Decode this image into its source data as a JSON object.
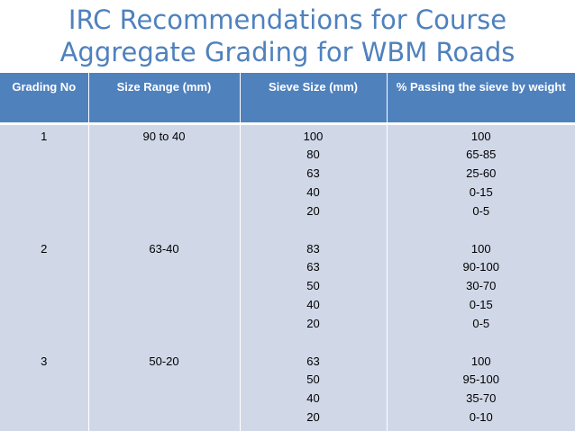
{
  "title": {
    "line1": "IRC Recommendations for Course",
    "line2": "Aggregate Grading for WBM Roads"
  },
  "table": {
    "headers": [
      "Grading No",
      "Size Range (mm)",
      "Sieve Size (mm)",
      "% Passing the sieve by weight"
    ],
    "rows": [
      {
        "grading_no": "1",
        "size_range": "90 to 40",
        "sieve_sizes": [
          "100",
          "80",
          "63",
          "40",
          "20"
        ],
        "passing": [
          "100",
          "65-85",
          "25-60",
          "0-15",
          "0-5"
        ]
      },
      {
        "grading_no": "2",
        "size_range": "63-40",
        "sieve_sizes": [
          "83",
          "63",
          "50",
          "40",
          "20"
        ],
        "passing": [
          "100",
          "90-100",
          "30-70",
          "0-15",
          "0-5"
        ]
      },
      {
        "grading_no": "3",
        "size_range": "50-20",
        "sieve_sizes": [
          "63",
          "50",
          "40",
          "20"
        ],
        "passing": [
          "100",
          "95-100",
          "35-70",
          "0-10"
        ]
      }
    ]
  },
  "colors": {
    "title": "#4f81bd",
    "header_bg": "#4f81bd",
    "body_bg": "#d0d8e8"
  }
}
